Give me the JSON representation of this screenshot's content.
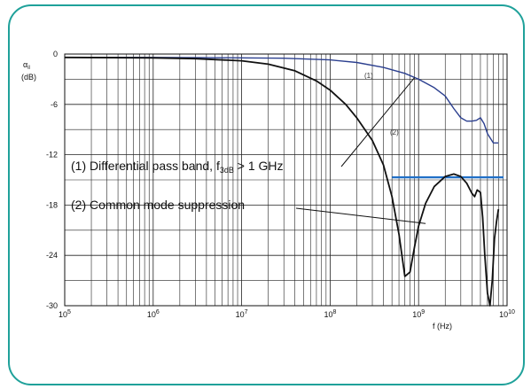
{
  "chart_data": {
    "type": "line",
    "title": "",
    "ylabel": "α",
    "ylabel_sub": "il",
    "yunit": "(dB)",
    "xlabel": "f (Hz)",
    "xscale": "log",
    "xlim": [
      100000,
      10000000000
    ],
    "ylim": [
      -30,
      0
    ],
    "grid": true,
    "yticks": [
      0,
      -6,
      -12,
      -18,
      -24,
      -30
    ],
    "xticks": [
      {
        "value": 100000,
        "base": "10",
        "exp": "5"
      },
      {
        "value": 1000000,
        "base": "10",
        "exp": "6"
      },
      {
        "value": 10000000,
        "base": "10",
        "exp": "7"
      },
      {
        "value": 100000000,
        "base": "10",
        "exp": "8"
      },
      {
        "value": 1000000000,
        "base": "10",
        "exp": "9"
      },
      {
        "value": 10000000000,
        "base": "10",
        "exp": "10"
      }
    ],
    "series": [
      {
        "label": "(1)",
        "color": "#2b3f8f",
        "x": [
          100000,
          1000000,
          10000000,
          30000000,
          100000000,
          200000000,
          400000000,
          700000000,
          1000000000,
          1500000000,
          2000000000,
          2500000000,
          3000000000,
          3500000000,
          4000000000,
          4500000000,
          5000000000,
          5500000000,
          6000000000,
          7000000000,
          8000000000
        ],
        "y": [
          -0.4,
          -0.4,
          -0.45,
          -0.5,
          -0.7,
          -1.0,
          -1.6,
          -2.3,
          -3.0,
          -4.0,
          -5.0,
          -6.5,
          -7.6,
          -8.0,
          -8.0,
          -7.9,
          -7.6,
          -8.3,
          -9.5,
          -10.6,
          -10.6
        ]
      },
      {
        "label": "(2)",
        "color": "#111111",
        "x": [
          100000,
          1000000,
          3000000,
          10000000,
          20000000,
          40000000,
          70000000,
          100000000,
          150000000,
          200000000,
          300000000,
          400000000,
          500000000,
          600000000,
          700000000,
          800000000,
          900000000,
          1000000000,
          1200000000,
          1500000000,
          2000000000,
          2500000000,
          3000000000,
          3500000000,
          4000000000,
          4300000000,
          4600000000,
          5000000000,
          5300000000,
          5600000000,
          6000000000,
          6400000000,
          6800000000,
          7200000000,
          7600000000,
          8000000000
        ],
        "y": [
          -0.4,
          -0.45,
          -0.55,
          -0.8,
          -1.2,
          -2.0,
          -3.2,
          -4.3,
          -6.0,
          -7.6,
          -10.3,
          -13.2,
          -17.0,
          -21.5,
          -26.5,
          -26.0,
          -23.0,
          -20.5,
          -17.8,
          -15.8,
          -14.6,
          -14.3,
          -14.6,
          -15.4,
          -16.6,
          -17.0,
          -16.2,
          -16.5,
          -19.5,
          -24.0,
          -28.5,
          -30.0,
          -27.0,
          -22.0,
          -20.0,
          -18.5
        ]
      }
    ],
    "reference_line": {
      "color": "#1f6fc7",
      "x": [
        500000000,
        10000000000
      ],
      "y": [
        -14.7,
        -14.7
      ]
    },
    "annotations": [
      {
        "id": "ann1",
        "text_main": "(1) Differential pass band, f",
        "text_sub": "3dB",
        "text_tail": " > 1 GHz",
        "target": [
          900000000,
          -2.8
        ]
      },
      {
        "id": "ann2",
        "text_main": "(2) Common mode suppression",
        "text_sub": "",
        "text_tail": "",
        "target": [
          1200000000,
          -20.2
        ]
      }
    ]
  }
}
